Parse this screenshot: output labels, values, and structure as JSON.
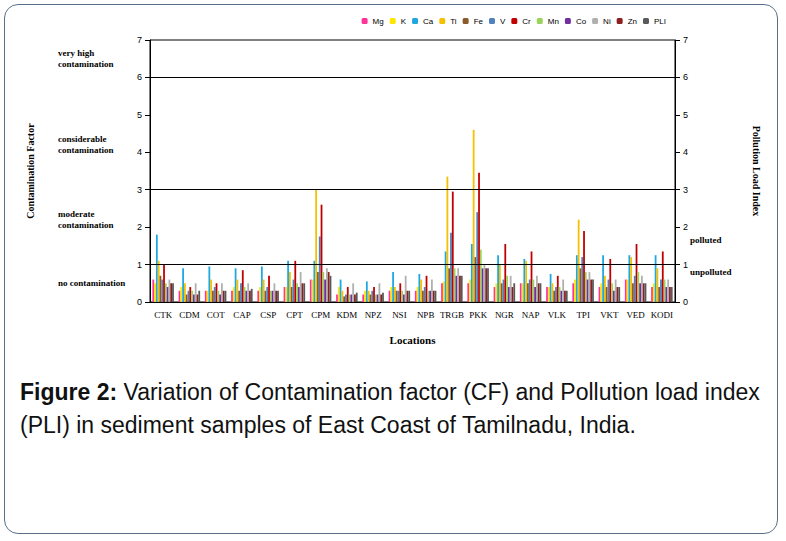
{
  "chart_data": {
    "type": "bar",
    "xlabel": "Locations",
    "ylabel": "Contamination Factor",
    "y2label": "Pollution Load Index",
    "categories": [
      "CTK",
      "CDM",
      "COT",
      "CAP",
      "CSP",
      "CPT",
      "CPM",
      "KDM",
      "NPZ",
      "NSI",
      "NPB",
      "TRGB",
      "PKK",
      "NGR",
      "NAP",
      "VLK",
      "TPI",
      "VKT",
      "VED",
      "KODI"
    ],
    "series": [
      {
        "name": "Mg",
        "color": "#ff3399",
        "values": [
          0.6,
          0.3,
          0.3,
          0.3,
          0.3,
          0.4,
          0.6,
          0.2,
          0.2,
          0.3,
          0.3,
          0.5,
          0.5,
          0.4,
          0.5,
          0.4,
          0.5,
          0.4,
          0.6,
          0.4
        ]
      },
      {
        "name": "K",
        "color": "#ffe600",
        "values": [
          0.5,
          0.4,
          0.3,
          0.4,
          0.4,
          0.4,
          0.6,
          0.4,
          0.3,
          0.4,
          0.4,
          0.55,
          0.6,
          0.5,
          0.5,
          0.4,
          0.6,
          0.5,
          0.6,
          0.5
        ]
      },
      {
        "name": "Ca",
        "color": "#1fa8e0",
        "values": [
          1.8,
          0.9,
          0.95,
          0.9,
          0.95,
          1.1,
          1.1,
          0.6,
          0.55,
          0.8,
          0.75,
          1.35,
          1.55,
          1.25,
          1.15,
          0.75,
          1.25,
          1.25,
          1.25,
          1.25
        ]
      },
      {
        "name": "Ti",
        "color": "#f5c000",
        "values": [
          1.1,
          0.5,
          0.6,
          0.6,
          0.6,
          0.8,
          3.0,
          0.3,
          0.3,
          0.4,
          0.6,
          3.35,
          4.6,
          1.0,
          1.1,
          0.5,
          2.2,
          0.7,
          1.2,
          0.9
        ]
      },
      {
        "name": "Fe",
        "color": "#8b5a2b",
        "values": [
          0.7,
          0.2,
          0.3,
          0.3,
          0.3,
          0.4,
          0.8,
          0.15,
          0.2,
          0.3,
          0.3,
          0.9,
          1.2,
          0.5,
          0.5,
          0.3,
          0.9,
          0.4,
          0.5,
          0.4
        ]
      },
      {
        "name": "V",
        "color": "#4f81bd",
        "values": [
          0.6,
          0.3,
          0.4,
          0.5,
          0.4,
          0.6,
          1.75,
          0.2,
          0.3,
          0.3,
          0.4,
          1.85,
          2.4,
          0.6,
          0.6,
          0.4,
          1.2,
          0.6,
          0.7,
          0.6
        ]
      },
      {
        "name": "Cr",
        "color": "#c00000",
        "values": [
          1.0,
          0.4,
          0.5,
          0.85,
          0.7,
          1.1,
          2.6,
          0.4,
          0.4,
          0.5,
          0.7,
          2.95,
          3.45,
          1.55,
          1.35,
          0.7,
          1.9,
          1.15,
          1.55,
          1.35
        ]
      },
      {
        "name": "Mn",
        "color": "#9bd35a",
        "values": [
          0.5,
          0.3,
          0.3,
          0.4,
          0.3,
          0.5,
          0.8,
          0.2,
          0.2,
          0.3,
          0.3,
          0.9,
          1.4,
          0.7,
          0.6,
          0.4,
          0.8,
          0.5,
          0.8,
          0.6
        ]
      },
      {
        "name": "Co",
        "color": "#7030a0",
        "values": [
          0.4,
          0.2,
          0.2,
          0.3,
          0.3,
          0.4,
          0.6,
          0.2,
          0.2,
          0.2,
          0.3,
          0.7,
          0.9,
          0.4,
          0.4,
          0.3,
          0.6,
          0.3,
          0.5,
          0.4
        ]
      },
      {
        "name": "Ni",
        "color": "#b0b0b0",
        "values": [
          0.6,
          0.5,
          0.5,
          0.5,
          0.5,
          0.8,
          0.9,
          0.5,
          0.5,
          0.7,
          0.6,
          0.9,
          1.0,
          0.7,
          0.7,
          0.6,
          0.8,
          0.6,
          0.7,
          0.6
        ]
      },
      {
        "name": "Zn",
        "color": "#8b2020",
        "values": [
          0.5,
          0.2,
          0.3,
          0.3,
          0.3,
          0.5,
          0.8,
          0.2,
          0.2,
          0.3,
          0.3,
          0.7,
          0.9,
          0.4,
          0.5,
          0.3,
          0.6,
          0.4,
          0.5,
          0.4
        ]
      },
      {
        "name": "PLI",
        "color": "#595959",
        "axis": "y2",
        "values": [
          0.5,
          0.3,
          0.3,
          0.35,
          0.3,
          0.5,
          0.7,
          0.25,
          0.25,
          0.3,
          0.3,
          0.7,
          0.9,
          0.5,
          0.5,
          0.3,
          0.6,
          0.4,
          0.5,
          0.4
        ]
      }
    ],
    "ylim": [
      0,
      7
    ],
    "yticks": [
      0,
      1,
      2,
      3,
      4,
      5,
      6,
      7
    ],
    "y2lim": [
      0,
      7
    ],
    "y2ticks": [
      0,
      1,
      2,
      3,
      4,
      5,
      6,
      7
    ],
    "reference_lines": [
      1,
      3,
      6
    ],
    "annotations": [
      {
        "text": "very high contamination",
        "y": 6.5,
        "axis": "y"
      },
      {
        "text": "considerable contamination",
        "y": 4.2,
        "axis": "y"
      },
      {
        "text": "moderate contamination",
        "y": 2.2,
        "axis": "y"
      },
      {
        "text": "no contamination",
        "y": 0.5,
        "axis": "y"
      },
      {
        "text": "polluted",
        "y": 1.65,
        "axis": "y2"
      },
      {
        "text": "unpolluted",
        "y": 0.8,
        "axis": "y2"
      }
    ],
    "legend": "top-right",
    "grid": false
  },
  "caption": {
    "label": "Figure 2:",
    "text": "Variation of Contamination factor (CF) and Pollution load index (PLI) in sediment samples of East Coast of Tamilnadu, India."
  }
}
